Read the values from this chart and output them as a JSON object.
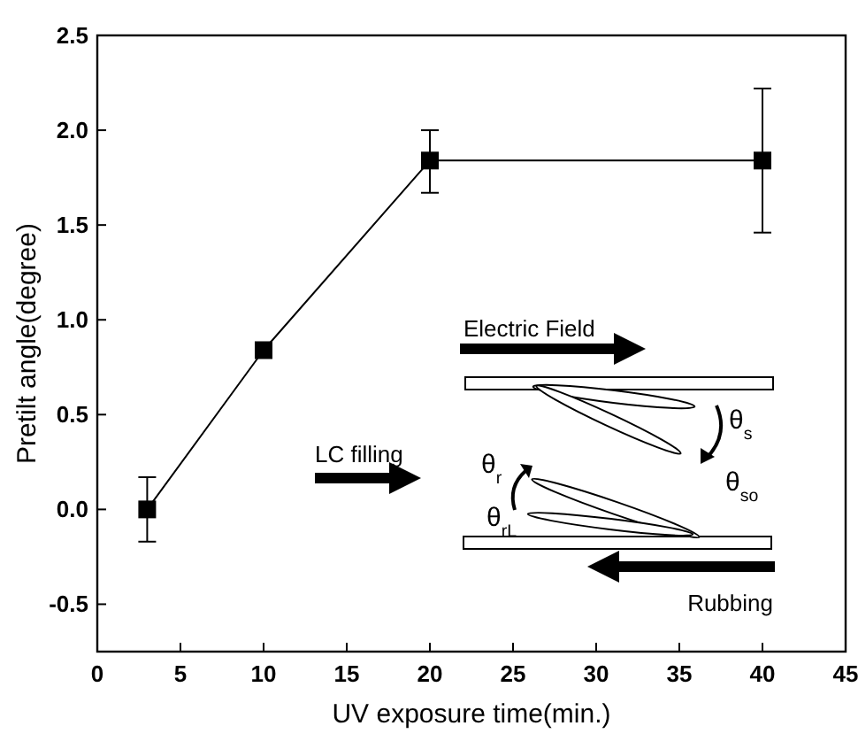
{
  "chart_data": {
    "type": "line",
    "xlabel": "UV exposure time(min.)",
    "ylabel": "Pretilt angle(degree)",
    "x": [
      3,
      10,
      20,
      40
    ],
    "series": [
      {
        "color": "#000000",
        "values": [
          0.0,
          0.84,
          1.84,
          1.84
        ],
        "errors": [
          [
            -0.17,
            0.17
          ],
          [
            0.82,
            0.86
          ],
          [
            1.67,
            2.0
          ],
          [
            1.46,
            2.22
          ]
        ]
      }
    ],
    "xlim": [
      0,
      45
    ],
    "xticks": [
      0,
      5,
      10,
      15,
      20,
      25,
      30,
      35,
      40,
      45
    ],
    "ylim": [
      -0.75,
      2.5
    ],
    "yticks": [
      -0.5,
      {
        "value": 0,
        "label": "0.0"
      },
      0.5,
      {
        "value": 1,
        "label": "1.0"
      },
      1.5,
      {
        "value": 2,
        "label": "2.0"
      },
      2.5
    ],
    "marker": "square",
    "line_style": "solid",
    "grid": false,
    "annotations": [
      "Electric Field",
      "LC filling",
      "Rubbing",
      "θ$_{s}$",
      "θ$_{so}$",
      "θ$_{r}$",
      "θ$_{rL}$"
    ]
  }
}
